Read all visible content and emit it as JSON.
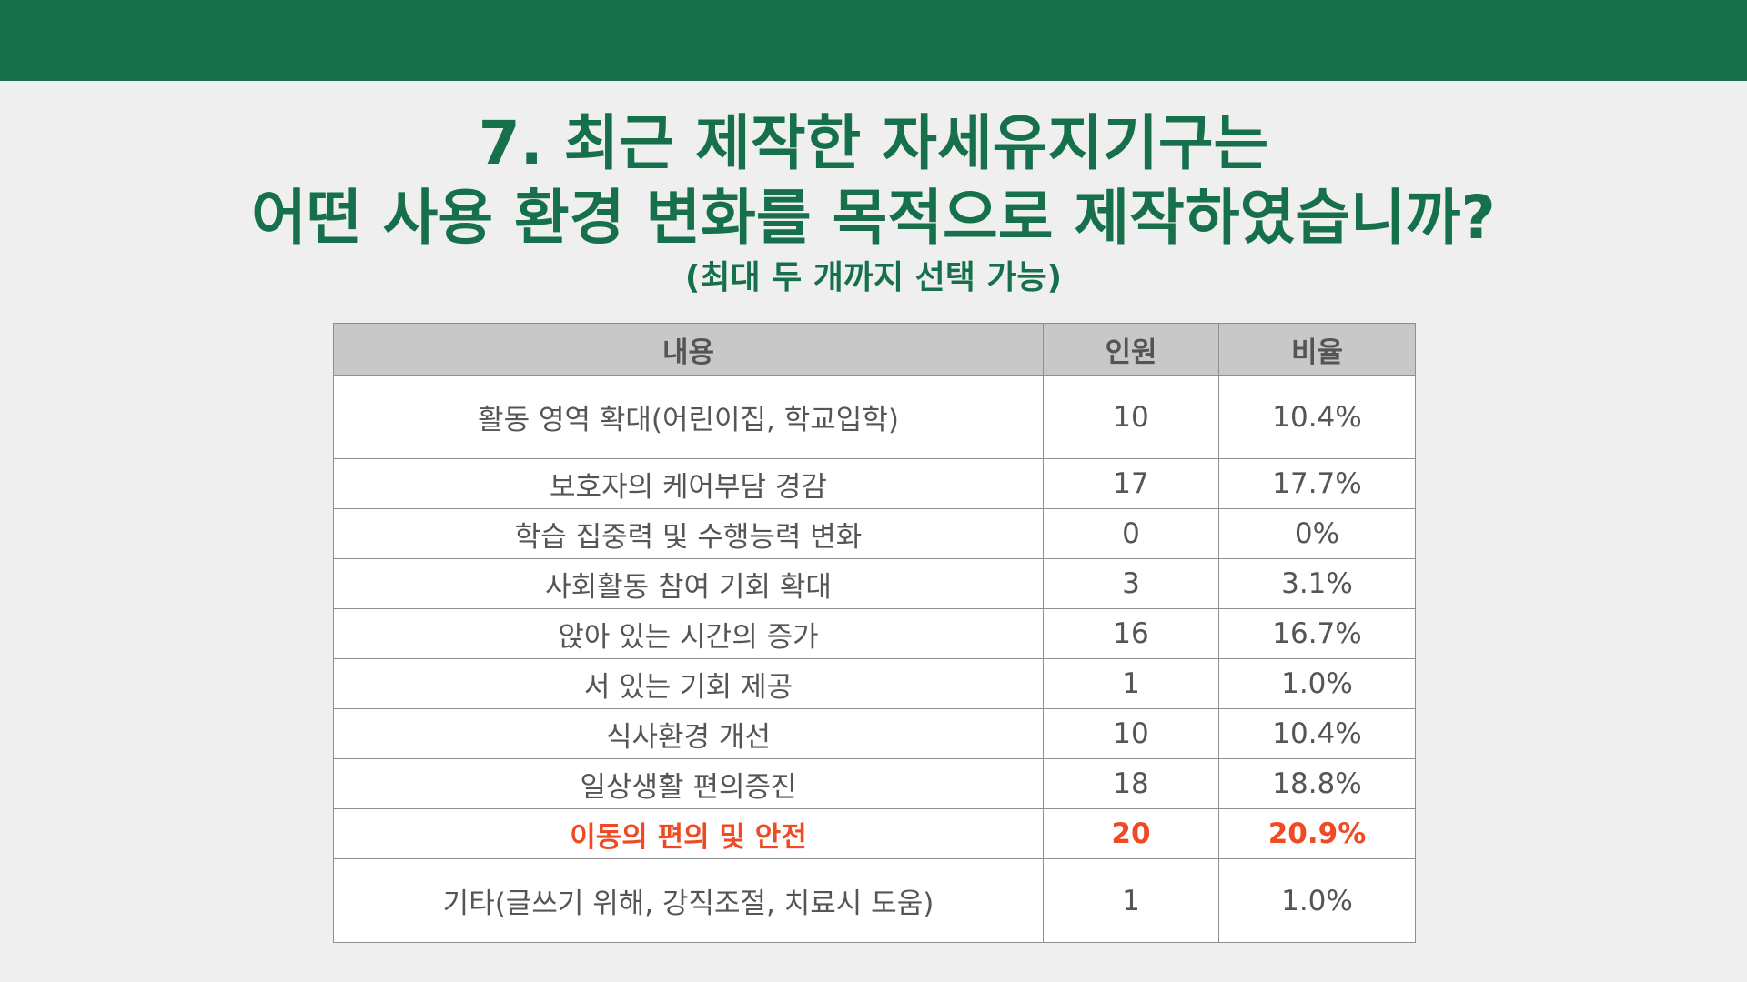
{
  "title": {
    "line1": "7. 최근 제작한 자세유지기구는",
    "line2": "어떤 사용 환경 변화를 목적으로 제작하였습니까?",
    "subtitle": "(최대 두 개까지 선택 가능)"
  },
  "table": {
    "headers": [
      "내용",
      "인원",
      "비율"
    ],
    "rows": [
      {
        "label": "활동 영역 확대(어린이집, 학교입학)",
        "count": "10",
        "ratio": "10.4%"
      },
      {
        "label": "보호자의 케어부담 경감",
        "count": "17",
        "ratio": "17.7%"
      },
      {
        "label": "학습 집중력 및 수행능력 변화",
        "count": "0",
        "ratio": "0%"
      },
      {
        "label": "사회활동 참여 기회 확대",
        "count": "3",
        "ratio": "3.1%"
      },
      {
        "label": "앉아 있는 시간의 증가",
        "count": "16",
        "ratio": "16.7%"
      },
      {
        "label": "서 있는 기회 제공",
        "count": "1",
        "ratio": "1.0%"
      },
      {
        "label": "식사환경 개선",
        "count": "10",
        "ratio": "10.4%"
      },
      {
        "label": "일상생활 편의증진",
        "count": "18",
        "ratio": "18.8%"
      },
      {
        "label": "이동의 편의 및 안전",
        "count": "20",
        "ratio": "20.9%"
      },
      {
        "label": "기타(글쓰기 위해, 강직조절, 치료시 도움)",
        "count": "1",
        "ratio": "1.0%"
      }
    ]
  },
  "colors": {
    "brand_green": "#15704b",
    "highlight_red": "#ef4a23",
    "header_gray": "#c8c8c8"
  }
}
